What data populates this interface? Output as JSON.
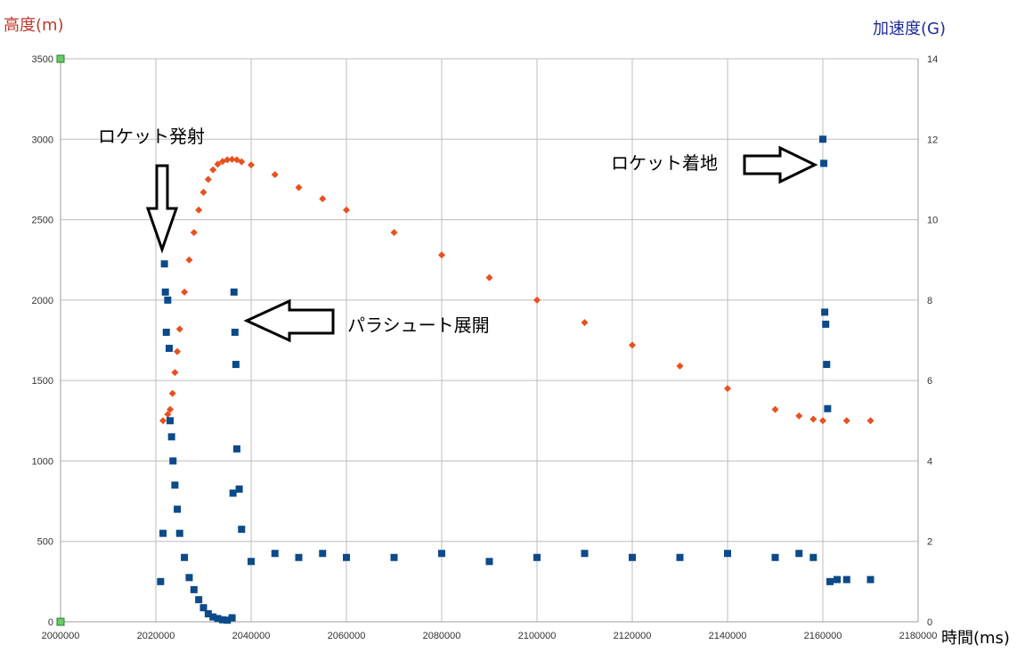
{
  "chart_data": {
    "type": "scatter",
    "title": "",
    "xlabel": "時間(ms)",
    "ylabel_left": "高度(m)",
    "ylabel_right": "加速度(G)",
    "xlim": [
      2000000,
      2180000
    ],
    "ylim_left": [
      0,
      3500
    ],
    "ylim_right": [
      0,
      14
    ],
    "x_ticks": [
      "2000000",
      "2020000",
      "2040000",
      "2060000",
      "2080000",
      "2100000",
      "2120000",
      "2140000",
      "2160000",
      "2180000"
    ],
    "y_left_ticks": [
      "0",
      "500",
      "1000",
      "1500",
      "2000",
      "2500",
      "3000",
      "3500"
    ],
    "y_right_ticks": [
      "0",
      "2",
      "4",
      "6",
      "8",
      "10",
      "12",
      "14"
    ],
    "grid": true,
    "colors": {
      "altitude": "#e8501e",
      "acceleration": "#0c4a8a",
      "left_axis_label": "#c0392b",
      "right_axis_label": "#1f2a9e",
      "grid": "#bdbdbd"
    },
    "series": [
      {
        "name": "高度(m)",
        "axis": "left",
        "marker": "diamond",
        "x": [
          2021500,
          2022500,
          2023000,
          2023500,
          2024000,
          2024500,
          2025000,
          2026000,
          2027000,
          2028000,
          2029000,
          2030000,
          2031000,
          2032000,
          2033000,
          2034000,
          2035000,
          2036000,
          2037000,
          2038000,
          2040000,
          2045000,
          2050000,
          2055000,
          2060000,
          2070000,
          2080000,
          2090000,
          2100000,
          2110000,
          2120000,
          2130000,
          2140000,
          2150000,
          2155000,
          2158000,
          2160000,
          2165000,
          2170000
        ],
        "y": [
          1250,
          1290,
          1320,
          1420,
          1550,
          1680,
          1820,
          2050,
          2250,
          2420,
          2560,
          2670,
          2750,
          2810,
          2845,
          2862,
          2872,
          2875,
          2872,
          2860,
          2840,
          2780,
          2700,
          2630,
          2560,
          2420,
          2280,
          2140,
          2000,
          1860,
          1720,
          1590,
          1450,
          1320,
          1280,
          1260,
          1250,
          1250,
          1250
        ]
      },
      {
        "name": "加速度(G)",
        "axis": "right",
        "marker": "square",
        "x": [
          2021000,
          2021500,
          2021800,
          2022000,
          2022200,
          2022500,
          2022800,
          2023000,
          2023300,
          2023600,
          2024000,
          2024500,
          2025000,
          2026000,
          2027000,
          2028000,
          2029000,
          2030000,
          2031000,
          2032000,
          2033000,
          2034000,
          2035000,
          2036000,
          2036200,
          2036400,
          2036600,
          2036800,
          2037000,
          2037500,
          2038000,
          2040000,
          2045000,
          2050000,
          2055000,
          2060000,
          2070000,
          2080000,
          2090000,
          2100000,
          2110000,
          2120000,
          2130000,
          2140000,
          2150000,
          2155000,
          2158000,
          2160000,
          2160200,
          2160400,
          2160600,
          2160800,
          2161000,
          2161500,
          2163000,
          2165000,
          2170000
        ],
        "y": [
          1.0,
          2.2,
          8.9,
          8.2,
          7.2,
          8.0,
          6.8,
          5.0,
          4.6,
          4.0,
          3.4,
          2.8,
          2.2,
          1.6,
          1.1,
          0.8,
          0.55,
          0.35,
          0.2,
          0.12,
          0.08,
          0.05,
          0.04,
          0.1,
          3.2,
          8.2,
          7.2,
          6.4,
          4.3,
          3.3,
          2.3,
          1.5,
          1.7,
          1.6,
          1.7,
          1.6,
          1.6,
          1.7,
          1.5,
          1.6,
          1.7,
          1.6,
          1.6,
          1.7,
          1.6,
          1.7,
          1.6,
          12.0,
          11.4,
          7.7,
          7.4,
          6.4,
          5.3,
          1.0,
          1.05,
          1.05,
          1.05
        ]
      }
    ],
    "annotations": {
      "launch": "ロケット発射",
      "parachute": "パラシュート展開",
      "landing": "ロケット着地"
    }
  }
}
